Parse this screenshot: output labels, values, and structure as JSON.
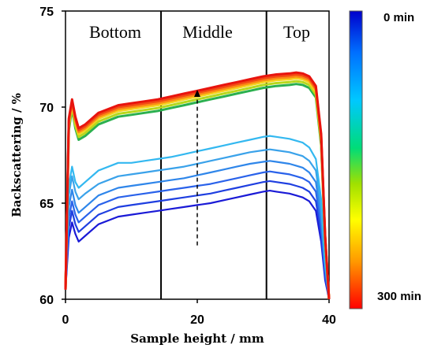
{
  "chart_data": {
    "type": "line",
    "title": "",
    "xlabel": "Sample height / mm",
    "ylabel": "Backscattering  / %",
    "xlim": [
      0,
      40
    ],
    "ylim": [
      60,
      75
    ],
    "x_ticks": [
      "0",
      "20",
      "40"
    ],
    "y_ticks": [
      "60",
      "65",
      "70",
      "75"
    ],
    "grid": false,
    "region_dividers_mm": [
      14.5,
      30.5
    ],
    "regions": [
      "Bottom",
      "Middle",
      "Top"
    ],
    "arrow": {
      "x": 20,
      "from": 62.8,
      "to": 70.9,
      "style": "dashed",
      "meaning": "increasing time"
    },
    "colorbar": {
      "top_label": "0 min",
      "bottom_label": "300 min",
      "colors": [
        "#0000cc",
        "#0070ff",
        "#00c8ff",
        "#00dc78",
        "#a0e000",
        "#ffff00",
        "#ff9a00",
        "#ff0000"
      ]
    },
    "x": [
      0,
      0.5,
      1,
      1.5,
      2,
      3,
      5,
      8,
      10,
      12,
      14,
      16,
      18,
      20,
      22,
      24,
      26,
      28,
      30,
      31,
      32,
      34,
      35,
      36,
      37,
      38,
      38.8,
      39.4,
      40
    ],
    "series": [
      {
        "color": "#1a1ad6",
        "values": [
          60.5,
          63.2,
          64.0,
          63.4,
          63.0,
          63.3,
          63.9,
          64.3,
          64.4,
          64.5,
          64.6,
          64.7,
          64.8,
          64.9,
          65.0,
          65.15,
          65.3,
          65.45,
          65.6,
          65.65,
          65.6,
          65.5,
          65.4,
          65.3,
          65.1,
          64.6,
          63.0,
          61.0,
          60.0
        ]
      },
      {
        "color": "#1f3fe0",
        "values": [
          60.5,
          63.7,
          64.6,
          63.9,
          63.5,
          63.8,
          64.4,
          64.8,
          64.9,
          65.0,
          65.1,
          65.2,
          65.3,
          65.4,
          65.5,
          65.65,
          65.8,
          65.95,
          66.1,
          66.15,
          66.1,
          66.0,
          65.9,
          65.8,
          65.6,
          65.1,
          63.4,
          61.2,
          60.0
        ]
      },
      {
        "color": "#2a62ea",
        "values": [
          60.5,
          64.2,
          65.1,
          64.4,
          64.0,
          64.3,
          64.9,
          65.3,
          65.4,
          65.5,
          65.6,
          65.7,
          65.8,
          65.9,
          66.0,
          66.15,
          66.3,
          66.45,
          66.6,
          66.65,
          66.6,
          66.5,
          66.4,
          66.3,
          66.1,
          65.6,
          63.8,
          61.4,
          60.0
        ]
      },
      {
        "color": "#2f86ea",
        "values": [
          60.5,
          64.8,
          65.7,
          64.9,
          64.5,
          64.8,
          65.4,
          65.8,
          65.9,
          66.0,
          66.1,
          66.2,
          66.3,
          66.45,
          66.6,
          66.75,
          66.9,
          67.05,
          67.15,
          67.2,
          67.15,
          67.05,
          66.95,
          66.85,
          66.6,
          66.1,
          64.2,
          61.6,
          60.0
        ]
      },
      {
        "color": "#3aa2ea",
        "values": [
          60.5,
          65.4,
          66.4,
          65.6,
          65.2,
          65.5,
          66.0,
          66.4,
          66.5,
          66.6,
          66.7,
          66.8,
          66.9,
          67.05,
          67.2,
          67.35,
          67.5,
          67.65,
          67.75,
          67.8,
          67.75,
          67.65,
          67.55,
          67.45,
          67.2,
          66.7,
          64.7,
          61.8,
          60.0
        ]
      },
      {
        "color": "#33b8f0",
        "values": [
          60.5,
          65.9,
          66.9,
          66.1,
          65.8,
          66.1,
          66.7,
          67.1,
          67.1,
          67.2,
          67.3,
          67.4,
          67.55,
          67.7,
          67.85,
          68.0,
          68.15,
          68.3,
          68.45,
          68.5,
          68.45,
          68.35,
          68.25,
          68.15,
          67.9,
          67.3,
          65.2,
          62.0,
          60.0
        ]
      },
      {
        "color": "#2bb04f",
        "values": [
          60.5,
          68.8,
          69.9,
          68.9,
          68.3,
          68.5,
          69.1,
          69.5,
          69.6,
          69.7,
          69.8,
          69.95,
          70.1,
          70.25,
          70.4,
          70.55,
          70.7,
          70.85,
          71.0,
          71.05,
          71.1,
          71.15,
          71.2,
          71.15,
          71.0,
          70.5,
          68.0,
          63.0,
          60.0
        ]
      },
      {
        "color": "#b7d81c",
        "values": [
          60.5,
          68.95,
          70.05,
          69.05,
          68.45,
          68.65,
          69.25,
          69.65,
          69.75,
          69.85,
          69.95,
          70.1,
          70.25,
          70.4,
          70.55,
          70.7,
          70.85,
          71.0,
          71.15,
          71.2,
          71.25,
          71.3,
          71.35,
          71.3,
          71.15,
          70.65,
          68.15,
          63.1,
          60.0
        ]
      },
      {
        "color": "#f6d11d",
        "values": [
          60.5,
          69.1,
          70.15,
          69.2,
          68.6,
          68.8,
          69.4,
          69.8,
          69.9,
          70.0,
          70.1,
          70.25,
          70.4,
          70.55,
          70.7,
          70.85,
          71.0,
          71.15,
          71.3,
          71.35,
          71.4,
          71.45,
          71.5,
          71.45,
          71.3,
          70.8,
          68.3,
          63.2,
          60.0
        ]
      },
      {
        "color": "#fb8a14",
        "values": [
          60.5,
          69.2,
          70.25,
          69.3,
          68.7,
          68.9,
          69.5,
          69.9,
          70.0,
          70.1,
          70.2,
          70.35,
          70.5,
          70.65,
          70.8,
          70.95,
          71.1,
          71.25,
          71.4,
          71.45,
          71.5,
          71.55,
          71.6,
          71.55,
          71.4,
          70.9,
          68.4,
          63.25,
          60.0
        ]
      },
      {
        "color": "#f24a14",
        "values": [
          60.5,
          69.3,
          70.3,
          69.4,
          68.8,
          69.0,
          69.6,
          70.0,
          70.1,
          70.2,
          70.3,
          70.45,
          70.6,
          70.75,
          70.9,
          71.05,
          71.2,
          71.35,
          71.5,
          71.55,
          71.6,
          71.65,
          71.7,
          71.65,
          71.5,
          71.0,
          68.5,
          63.3,
          60.0
        ]
      },
      {
        "color": "#e8140e",
        "values": [
          60.5,
          69.4,
          70.4,
          69.5,
          68.9,
          69.1,
          69.7,
          70.1,
          70.2,
          70.3,
          70.4,
          70.55,
          70.7,
          70.85,
          71.0,
          71.15,
          71.3,
          71.45,
          71.6,
          71.65,
          71.7,
          71.75,
          71.8,
          71.75,
          71.6,
          71.1,
          68.6,
          63.35,
          60.0
        ]
      }
    ]
  }
}
